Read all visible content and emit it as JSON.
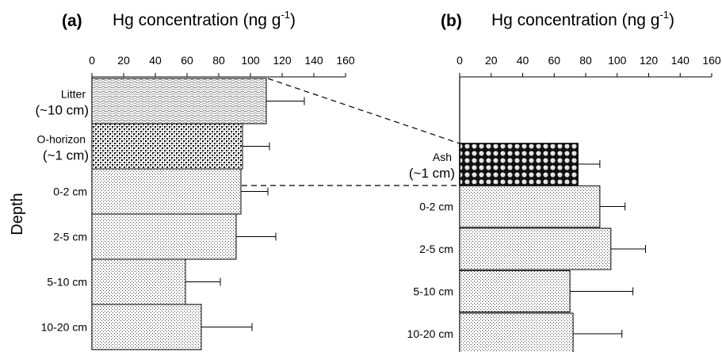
{
  "chart_data": [
    {
      "type": "bar",
      "orientation": "horizontal",
      "panel_label": "(a)",
      "title": "Hg concentration (ng g",
      "title_superscript": "-1",
      "title_suffix": ")",
      "ylabel": "Depth",
      "xlim": [
        0,
        160
      ],
      "xticks": [
        "0",
        "20",
        "40",
        "60",
        "80",
        "100",
        "120",
        "140",
        "160"
      ],
      "xaxis_position": "top",
      "categories": [
        {
          "lines": [
            "Litter",
            "(~10 cm)"
          ]
        },
        {
          "lines": [
            "O-horizon",
            "(~1 cm)"
          ]
        },
        {
          "lines": [
            "0-2 cm"
          ]
        },
        {
          "lines": [
            "2-5 cm"
          ]
        },
        {
          "lines": [
            "5-10 cm"
          ]
        },
        {
          "lines": [
            "10-20 cm"
          ]
        }
      ],
      "values": [
        110,
        95,
        94,
        91,
        59,
        69
      ],
      "errors": [
        24,
        17,
        17,
        25,
        22,
        32
      ],
      "fill_patterns": [
        "wavy",
        "dense-dots",
        "fine-dots",
        "fine-dots",
        "fine-dots",
        "fine-dots"
      ]
    },
    {
      "type": "bar",
      "orientation": "horizontal",
      "panel_label": "(b)",
      "title": "Hg concentration (ng g",
      "title_superscript": "-1",
      "title_suffix": ")",
      "xlim": [
        0,
        160
      ],
      "xticks": [
        "0",
        "20",
        "40",
        "60",
        "80",
        "100",
        "120",
        "140",
        "160"
      ],
      "xaxis_position": "top",
      "categories": [
        {
          "lines": [
            "Ash",
            "(~1 cm)"
          ]
        },
        {
          "lines": [
            "0-2 cm"
          ]
        },
        {
          "lines": [
            "2-5 cm"
          ]
        },
        {
          "lines": [
            "5-10 cm"
          ]
        },
        {
          "lines": [
            "10-20 cm"
          ]
        }
      ],
      "values": [
        75,
        89,
        96,
        70,
        72
      ],
      "errors": [
        14,
        16,
        22,
        40,
        31
      ],
      "fill_patterns": [
        "circles",
        "fine-dots",
        "fine-dots",
        "fine-dots",
        "fine-dots"
      ]
    }
  ]
}
